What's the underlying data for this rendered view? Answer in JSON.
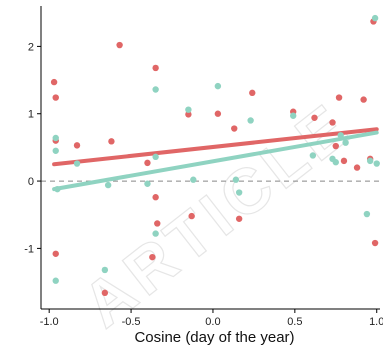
{
  "colors": {
    "red": "#e06666",
    "teal": "#8fd3c1",
    "axis": "#000000",
    "zero_line": "#888888",
    "watermark": "#e6e6e6"
  },
  "watermark_text": "ARTICLE",
  "chart_data": {
    "type": "scatter",
    "title": "",
    "xlabel": "Cosine (day of the year)",
    "ylabel": "",
    "xlim": [
      -1.05,
      1.02
    ],
    "ylim": [
      -1.9,
      2.6
    ],
    "x_ticks": [
      -1.0,
      -0.5,
      0.0,
      0.5,
      1.0
    ],
    "x_tick_labels": [
      "-1.0",
      "-0.5",
      "0.0",
      "0.5",
      "1.0"
    ],
    "y_ticks": [
      -1,
      0,
      1,
      2
    ],
    "y_tick_labels": [
      "-1",
      "0",
      "1",
      "2"
    ],
    "reference_line": {
      "y": 0,
      "style": "dashed"
    },
    "grid": false,
    "legend": "none",
    "series": [
      {
        "color": "red",
        "points": [
          [
            -0.97,
            1.47
          ],
          [
            -0.96,
            1.24
          ],
          [
            -0.96,
            0.6
          ],
          [
            -0.96,
            -1.08
          ],
          [
            -0.83,
            0.53
          ],
          [
            -0.62,
            0.59
          ],
          [
            -0.57,
            2.02
          ],
          [
            -0.4,
            0.27
          ],
          [
            -0.35,
            1.68
          ],
          [
            -0.35,
            -0.24
          ],
          [
            -0.37,
            -1.13
          ],
          [
            -0.34,
            -0.63
          ],
          [
            -0.15,
            0.99
          ],
          [
            -0.13,
            -0.52
          ],
          [
            0.03,
            1.0
          ],
          [
            0.13,
            0.78
          ],
          [
            0.16,
            -0.56
          ],
          [
            0.24,
            1.31
          ],
          [
            0.49,
            1.03
          ],
          [
            0.62,
            0.94
          ],
          [
            0.73,
            0.87
          ],
          [
            0.75,
            0.52
          ],
          [
            0.77,
            1.24
          ],
          [
            0.8,
            0.3
          ],
          [
            0.88,
            0.2
          ],
          [
            0.92,
            1.21
          ],
          [
            0.96,
            0.33
          ],
          [
            0.98,
            2.37
          ],
          [
            0.99,
            -0.92
          ],
          [
            -0.66,
            -1.66
          ]
        ],
        "trend": {
          "x": [
            -0.97,
            1.0
          ],
          "y": [
            0.25,
            0.77
          ]
        }
      },
      {
        "color": "teal",
        "points": [
          [
            -0.96,
            0.64
          ],
          [
            -0.96,
            0.45
          ],
          [
            -0.95,
            -0.12
          ],
          [
            -0.96,
            -1.48
          ],
          [
            -0.83,
            0.26
          ],
          [
            -0.64,
            -0.06
          ],
          [
            -0.66,
            -1.32
          ],
          [
            -0.4,
            -0.04
          ],
          [
            -0.35,
            0.36
          ],
          [
            -0.35,
            -0.78
          ],
          [
            -0.35,
            1.36
          ],
          [
            -0.15,
            1.06
          ],
          [
            -0.12,
            0.02
          ],
          [
            0.03,
            1.41
          ],
          [
            0.14,
            0.02
          ],
          [
            0.16,
            -0.17
          ],
          [
            0.23,
            0.9
          ],
          [
            0.49,
            0.97
          ],
          [
            0.61,
            0.38
          ],
          [
            0.73,
            0.33
          ],
          [
            0.75,
            0.28
          ],
          [
            0.78,
            0.68
          ],
          [
            0.81,
            0.57
          ],
          [
            0.94,
            -0.49
          ],
          [
            0.96,
            0.3
          ],
          [
            0.99,
            2.42
          ],
          [
            1.0,
            0.26
          ]
        ],
        "trend": {
          "x": [
            -0.97,
            1.0
          ],
          "y": [
            -0.12,
            0.72
          ]
        }
      }
    ]
  }
}
